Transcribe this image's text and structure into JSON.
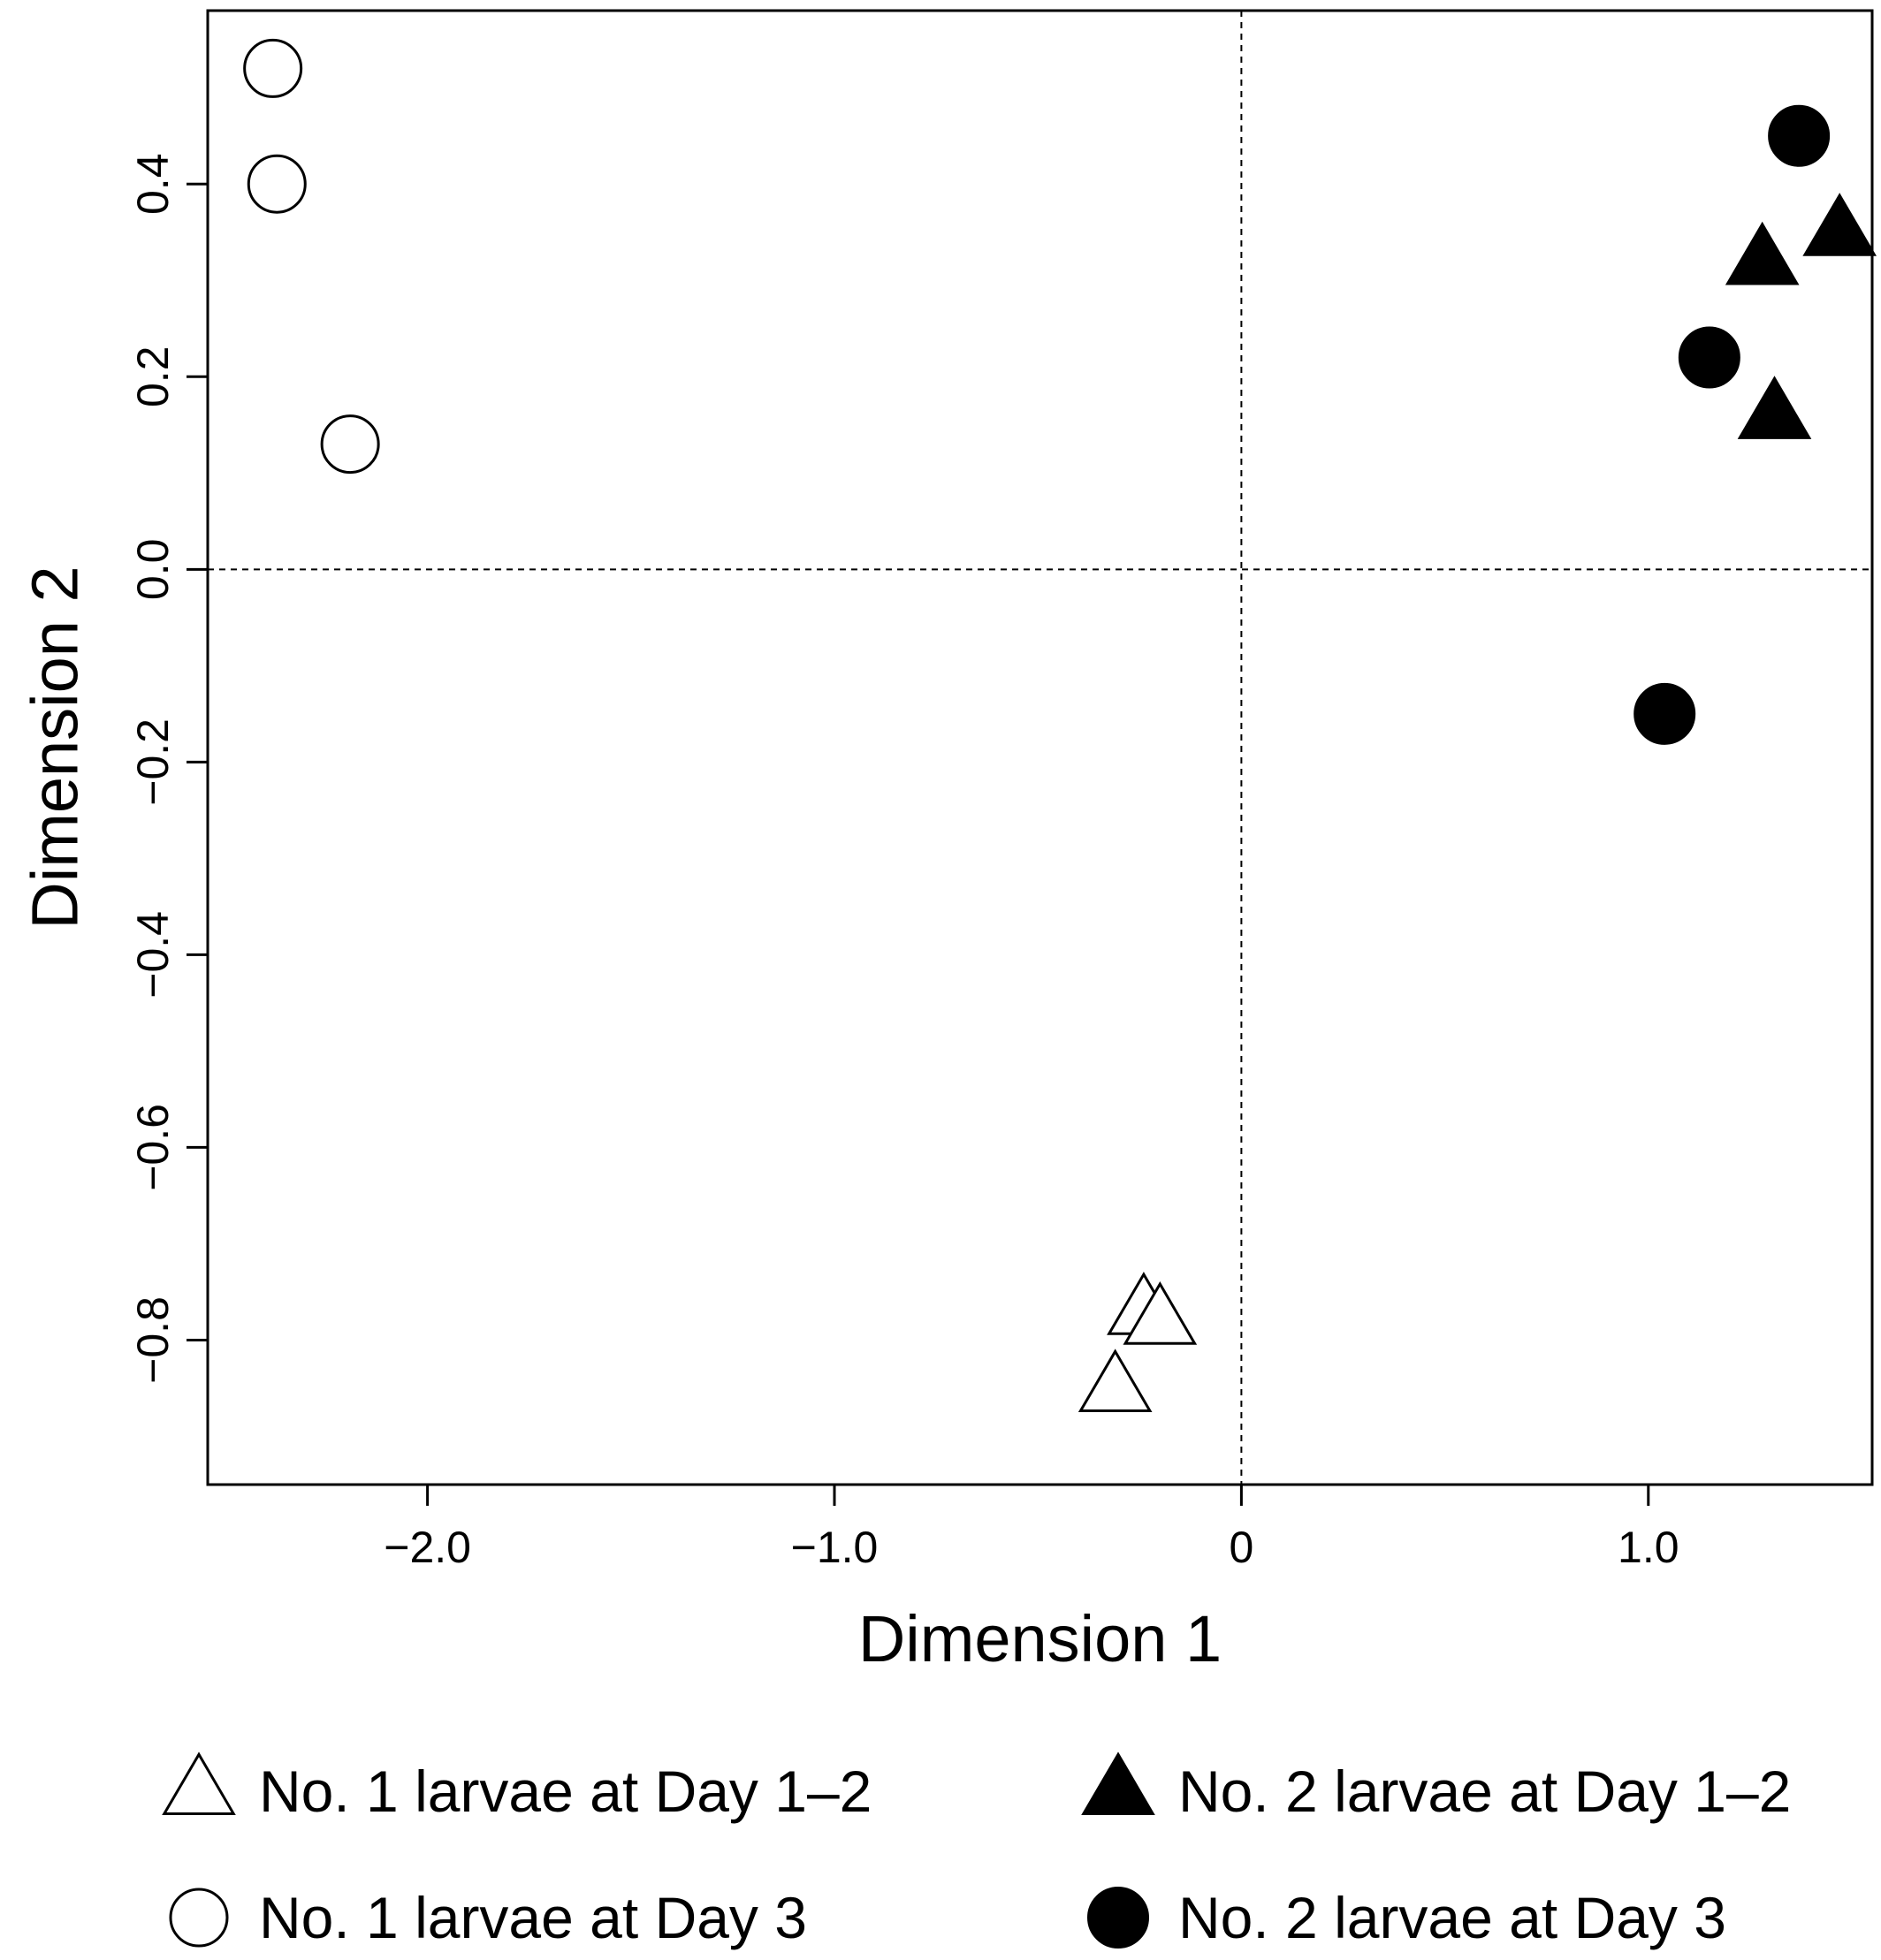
{
  "chart_data": {
    "type": "scatter",
    "xlabel": "Dimension 1",
    "ylabel": "Dimension 2",
    "xlim": [
      -2.54,
      1.55
    ],
    "ylim": [
      -0.95,
      0.58
    ],
    "x_ticks": [
      -2.0,
      -1.0,
      0,
      1.0
    ],
    "x_tick_labels": [
      "−2.0",
      "−1.0",
      "0",
      "1.0"
    ],
    "y_ticks": [
      -0.8,
      -0.6,
      -0.4,
      -0.2,
      0.0,
      0.2,
      0.4
    ],
    "y_tick_labels": [
      "−0.8",
      "−0.6",
      "−0.4",
      "−0.2",
      "0.0",
      "0.2",
      "0.4"
    ],
    "reference_lines": {
      "x": 0,
      "y": 0,
      "style": "dashed"
    },
    "grid": false,
    "legend_position": "bottom",
    "series": [
      {
        "name": "No. 1 larvae at Day 1–2",
        "marker": "triangle-open",
        "points": [
          [
            -0.24,
            -0.77
          ],
          [
            -0.2,
            -0.78
          ],
          [
            -0.31,
            -0.85
          ]
        ]
      },
      {
        "name": "No. 2 larvae at Day 1–2",
        "marker": "triangle-filled",
        "points": [
          [
            1.28,
            0.32
          ],
          [
            1.47,
            0.35
          ],
          [
            1.31,
            0.16
          ]
        ]
      },
      {
        "name": "No. 1 larvae at Day 3",
        "marker": "circle-open",
        "points": [
          [
            -2.38,
            0.52
          ],
          [
            -2.37,
            0.4
          ],
          [
            -2.19,
            0.13
          ]
        ]
      },
      {
        "name": "No. 2 larvae at Day 3",
        "marker": "circle-filled",
        "points": [
          [
            1.37,
            0.45
          ],
          [
            1.15,
            0.22
          ],
          [
            1.04,
            -0.15
          ]
        ]
      }
    ]
  }
}
